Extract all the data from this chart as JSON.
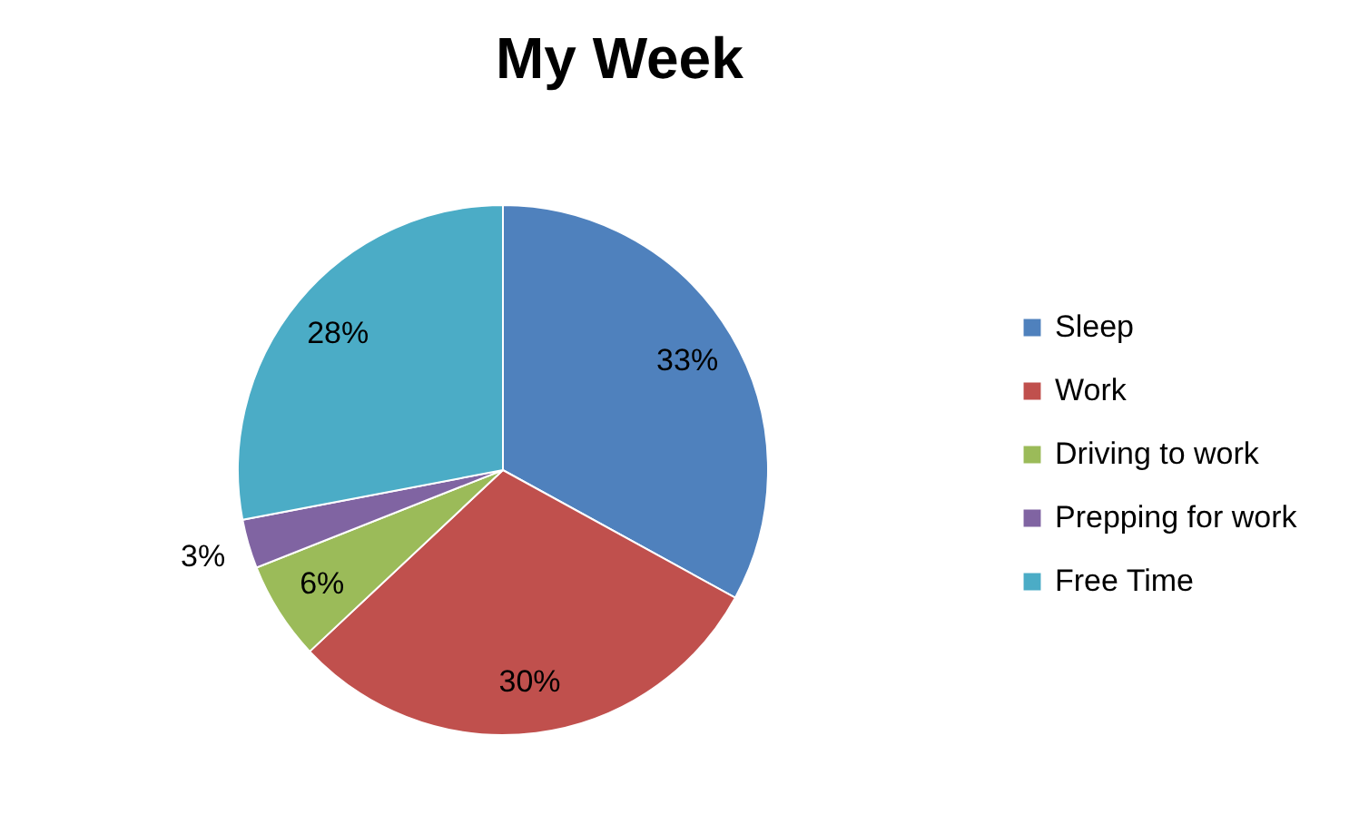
{
  "chart_data": {
    "type": "pie",
    "title": "My Week",
    "categories": [
      "Sleep",
      "Work",
      "Driving to work",
      "Prepping for work",
      "Free Time"
    ],
    "values": [
      33,
      30,
      6,
      3,
      28
    ],
    "colors": [
      "#4f81bd",
      "#c0504d",
      "#9bbb59",
      "#8064a2",
      "#4bacc6"
    ],
    "value_labels": [
      "33%",
      "30%",
      "6%",
      "3%",
      "28%"
    ],
    "legend": "right"
  }
}
